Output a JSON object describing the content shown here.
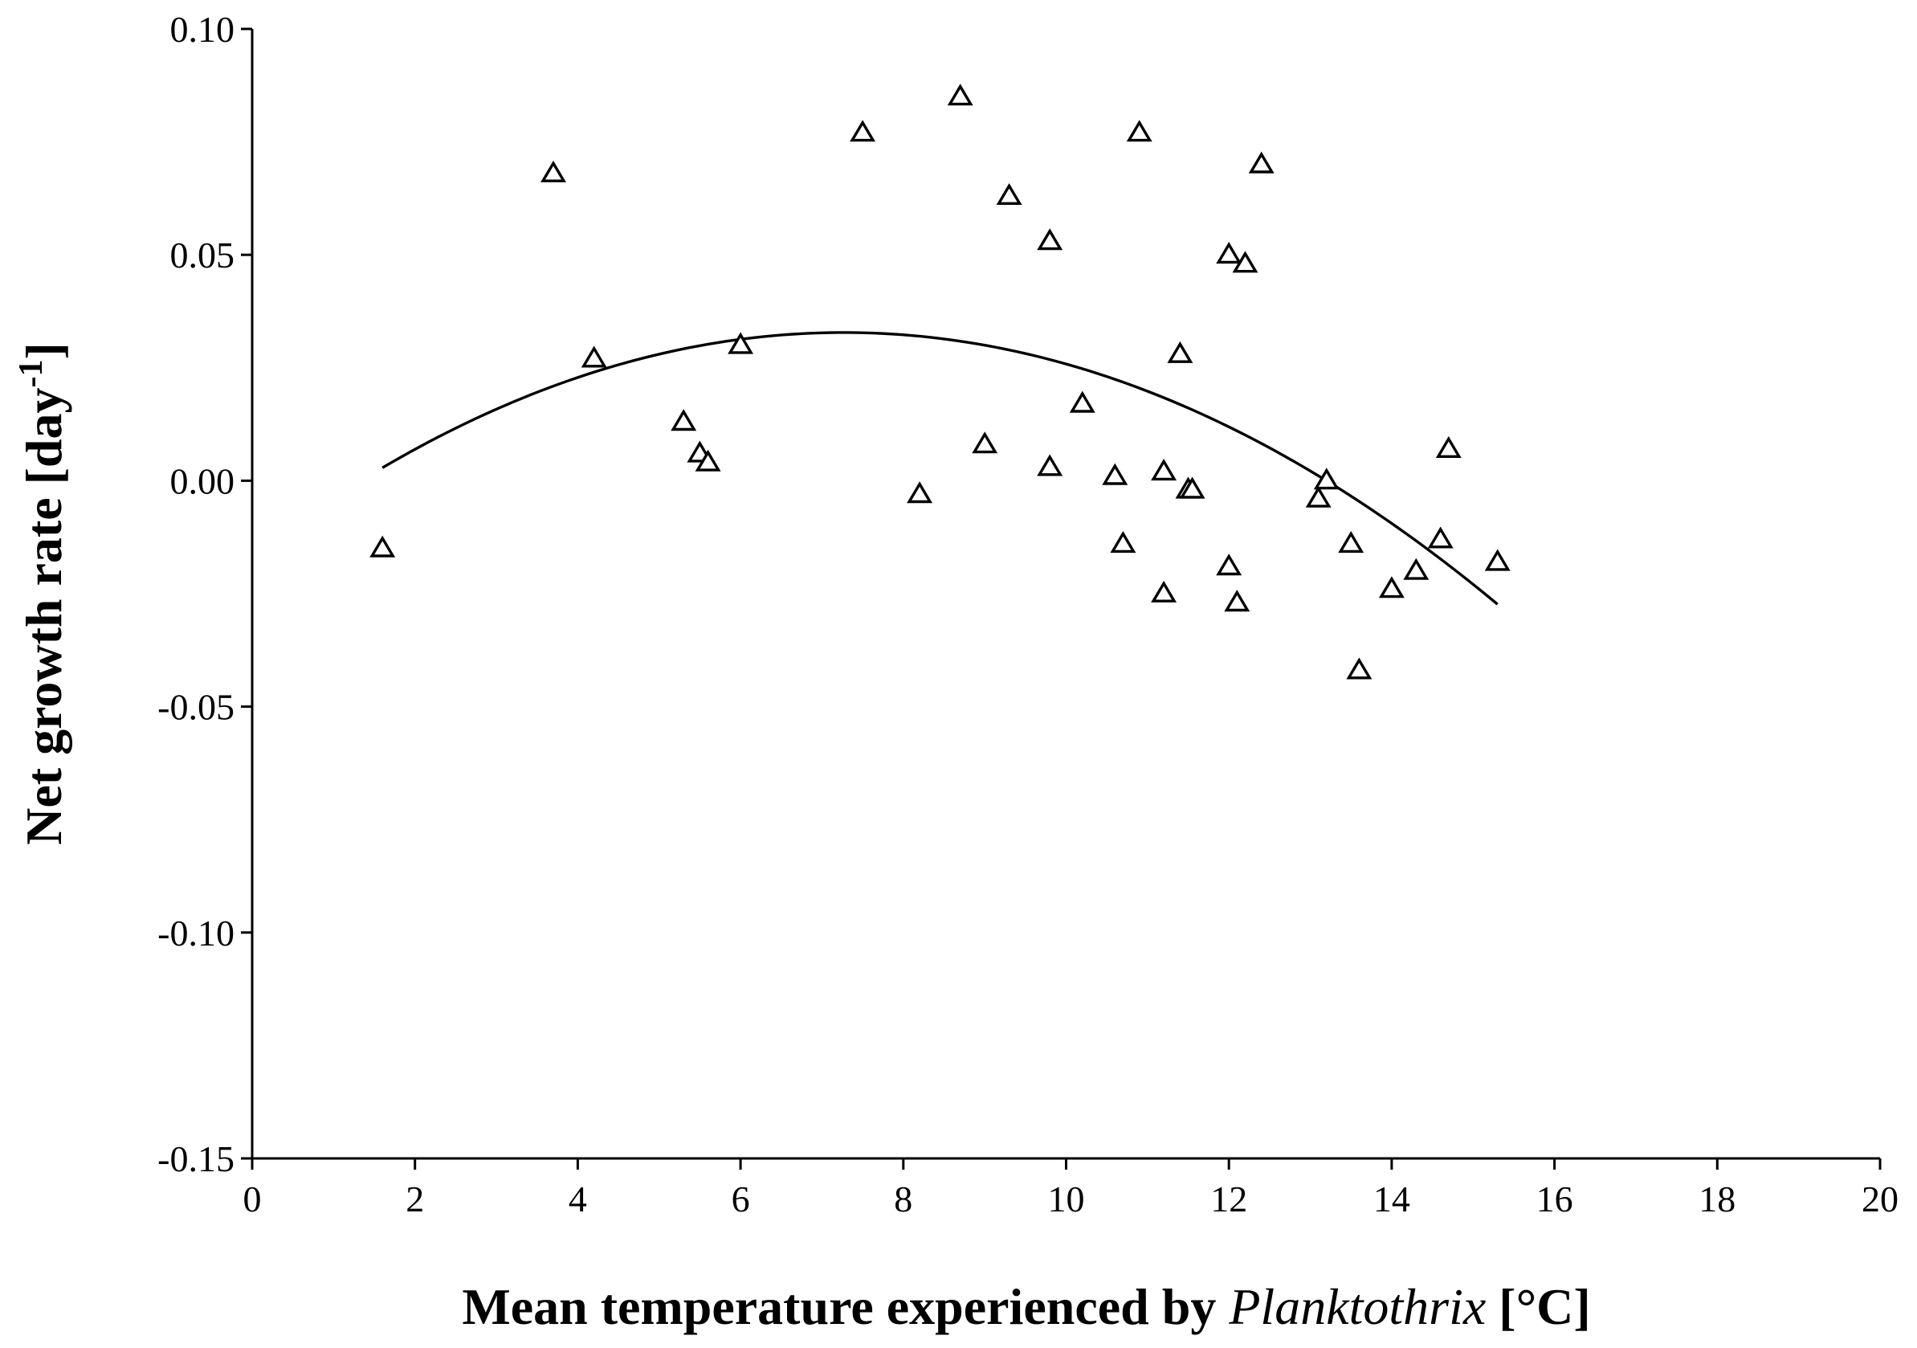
{
  "chart_data": {
    "type": "scatter",
    "title": "",
    "xlabel": {
      "prefix": "Mean temperature experienced by ",
      "italic": "Planktothrix",
      "suffix": " [°C]"
    },
    "ylabel": {
      "main": "Net growth rate [day",
      "superscript": "-1",
      "close": "]"
    },
    "xlim": [
      0,
      20
    ],
    "ylim": [
      -0.15,
      0.1
    ],
    "x_ticks": [
      {
        "value": 0,
        "label": "0"
      },
      {
        "value": 2,
        "label": "2"
      },
      {
        "value": 4,
        "label": "4"
      },
      {
        "value": 6,
        "label": "6"
      },
      {
        "value": 8,
        "label": "8"
      },
      {
        "value": 10,
        "label": "10"
      },
      {
        "value": 12,
        "label": "12"
      },
      {
        "value": 14,
        "label": "14"
      },
      {
        "value": 16,
        "label": "16"
      },
      {
        "value": 18,
        "label": "18"
      },
      {
        "value": 20,
        "label": "20"
      }
    ],
    "y_ticks": [
      {
        "value": 0.1,
        "label": "0.10"
      },
      {
        "value": 0.05,
        "label": "0.05"
      },
      {
        "value": 0.0,
        "label": "0.00"
      },
      {
        "value": -0.05,
        "label": "-0.05"
      },
      {
        "value": -0.1,
        "label": "-0.10"
      },
      {
        "value": -0.15,
        "label": "-0.15"
      }
    ],
    "grid": false,
    "marker": "open-triangle",
    "points": [
      {
        "x": 1.6,
        "y": -0.015
      },
      {
        "x": 3.7,
        "y": 0.068
      },
      {
        "x": 4.2,
        "y": 0.027
      },
      {
        "x": 5.3,
        "y": 0.013
      },
      {
        "x": 5.5,
        "y": 0.006
      },
      {
        "x": 5.6,
        "y": 0.004
      },
      {
        "x": 6.0,
        "y": 0.03
      },
      {
        "x": 7.5,
        "y": 0.077
      },
      {
        "x": 8.2,
        "y": -0.003
      },
      {
        "x": 8.7,
        "y": 0.085
      },
      {
        "x": 9.0,
        "y": 0.008
      },
      {
        "x": 9.3,
        "y": 0.063
      },
      {
        "x": 9.8,
        "y": 0.003
      },
      {
        "x": 9.8,
        "y": 0.053
      },
      {
        "x": 10.2,
        "y": 0.017
      },
      {
        "x": 10.6,
        "y": 0.001
      },
      {
        "x": 10.7,
        "y": -0.014
      },
      {
        "x": 10.9,
        "y": 0.077
      },
      {
        "x": 11.2,
        "y": -0.025
      },
      {
        "x": 11.2,
        "y": 0.002
      },
      {
        "x": 11.4,
        "y": 0.028
      },
      {
        "x": 11.5,
        "y": -0.002
      },
      {
        "x": 11.55,
        "y": -0.002
      },
      {
        "x": 12.0,
        "y": 0.05
      },
      {
        "x": 12.0,
        "y": -0.019
      },
      {
        "x": 12.1,
        "y": -0.027
      },
      {
        "x": 12.2,
        "y": 0.048
      },
      {
        "x": 12.4,
        "y": 0.07
      },
      {
        "x": 13.1,
        "y": -0.004
      },
      {
        "x": 13.2,
        "y": 0.0
      },
      {
        "x": 13.5,
        "y": -0.014
      },
      {
        "x": 13.6,
        "y": -0.042
      },
      {
        "x": 14.0,
        "y": -0.024
      },
      {
        "x": 14.3,
        "y": -0.02
      },
      {
        "x": 14.6,
        "y": -0.013
      },
      {
        "x": 14.7,
        "y": 0.007
      },
      {
        "x": 15.3,
        "y": -0.018
      }
    ],
    "trendline": {
      "type": "polynomial",
      "order": 2,
      "x_range": [
        1.6,
        15.3
      ],
      "peak": {
        "x": 7.2,
        "y": 0.032
      },
      "sample": [
        {
          "x": 1.6,
          "y": 0.003
        },
        {
          "x": 4.0,
          "y": 0.023
        },
        {
          "x": 7.2,
          "y": 0.032
        },
        {
          "x": 10.0,
          "y": 0.026
        },
        {
          "x": 13.2,
          "y": 0.001
        },
        {
          "x": 15.3,
          "y": -0.028
        }
      ]
    }
  }
}
